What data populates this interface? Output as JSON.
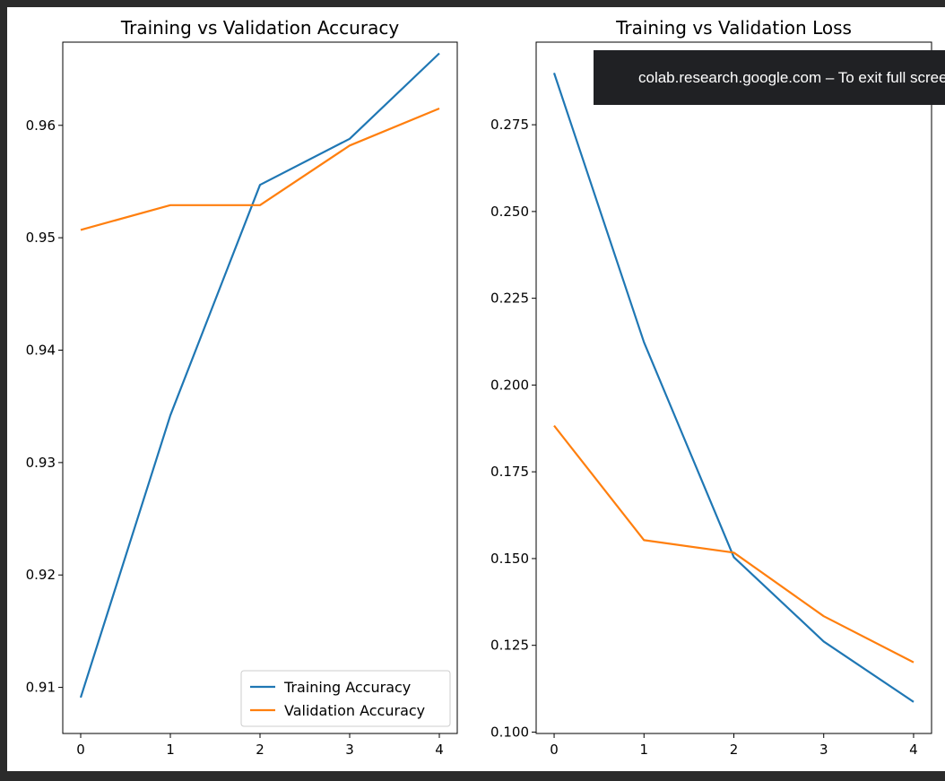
{
  "notification": {
    "text": "colab.research.google.com – To exit full screen, press Esc"
  },
  "chart_data": [
    {
      "type": "line",
      "title": "Training vs Validation Accuracy",
      "xlabel": "",
      "ylabel": "",
      "x": [
        0,
        1,
        2,
        3,
        4
      ],
      "xticks": [
        "0",
        "1",
        "2",
        "3",
        "4"
      ],
      "yticks": [
        "0.91",
        "0.92",
        "0.93",
        "0.94",
        "0.95",
        "0.96"
      ],
      "ylim": [
        0.9059,
        0.9674
      ],
      "grid": false,
      "legend_position": "lower right",
      "series": [
        {
          "name": "Training Accuracy",
          "color": "#1f77b4",
          "values": [
            0.9091,
            0.9342,
            0.9547,
            0.9588,
            0.9664
          ]
        },
        {
          "name": "Validation Accuracy",
          "color": "#ff7f0e",
          "values": [
            0.9507,
            0.9529,
            0.9529,
            0.9582,
            0.9615
          ]
        }
      ]
    },
    {
      "type": "line",
      "title": "Training vs Validation Loss",
      "xlabel": "",
      "ylabel": "",
      "x": [
        0,
        1,
        2,
        3,
        4
      ],
      "xticks": [
        "0",
        "1",
        "2",
        "3",
        "4"
      ],
      "yticks": [
        "0.100",
        "0.125",
        "0.150",
        "0.175",
        "0.200",
        "0.225",
        "0.250",
        "0.275"
      ],
      "ylim": [
        0.0996,
        0.2988
      ],
      "grid": false,
      "legend_position": "none",
      "series": [
        {
          "color": "#1f77b4",
          "values": [
            0.2899,
            0.2123,
            0.1504,
            0.1261,
            0.1087
          ]
        },
        {
          "color": "#ff7f0e",
          "values": [
            0.1883,
            0.1553,
            0.1517,
            0.1334,
            0.1201
          ]
        }
      ]
    }
  ]
}
